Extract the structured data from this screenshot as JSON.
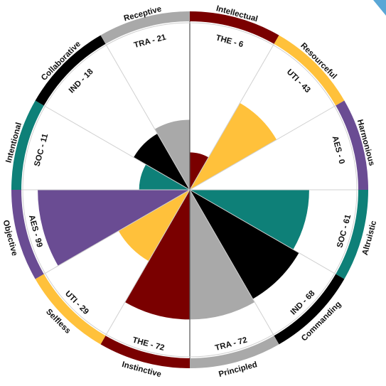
{
  "chart_data": {
    "type": "polar-area",
    "max_value": 100,
    "segments": [
      {
        "label": "THE - 6",
        "code": "THE",
        "value": 6,
        "ring_label": "Intellectual",
        "color": "#7a0000"
      },
      {
        "label": "UTI - 43",
        "code": "UTI",
        "value": 43,
        "ring_label": "Resourceful",
        "color": "#ffc13b"
      },
      {
        "label": "AES - 0",
        "code": "AES",
        "value": 0,
        "ring_label": "Harmonious",
        "color": "#6a4c93"
      },
      {
        "label": "SOC - 61",
        "code": "SOC",
        "value": 61,
        "ring_label": "Altruistic",
        "color": "#0e8078"
      },
      {
        "label": "IND - 68",
        "code": "IND",
        "value": 68,
        "ring_label": "Commanding",
        "color": "#000000"
      },
      {
        "label": "TRA - 72",
        "code": "TRA",
        "value": 72,
        "ring_label": "Principled",
        "color": "#a9a9a9"
      },
      {
        "label": "THE - 72",
        "code": "THE",
        "value": 72,
        "ring_label": "Instinctive",
        "color": "#7a0000"
      },
      {
        "label": "UTI - 29",
        "code": "UTI",
        "value": 29,
        "ring_label": "Selfless",
        "color": "#ffc13b"
      },
      {
        "label": "AES - 99",
        "code": "AES",
        "value": 99,
        "ring_label": "Objective",
        "color": "#6a4c93"
      },
      {
        "label": "SOC - 11",
        "code": "SOC",
        "value": 11,
        "ring_label": "Intentional",
        "color": "#0e8078"
      },
      {
        "label": "IND - 18",
        "code": "IND",
        "value": 18,
        "ring_label": "Collaborative",
        "color": "#000000"
      },
      {
        "label": "TRA - 21",
        "code": "TRA",
        "value": 21,
        "ring_label": "Receptive",
        "color": "#a9a9a9"
      }
    ]
  },
  "colors": {
    "grid": "#d0d0d0",
    "axis": "#555555",
    "corner_accent": "#5aa7d6"
  }
}
